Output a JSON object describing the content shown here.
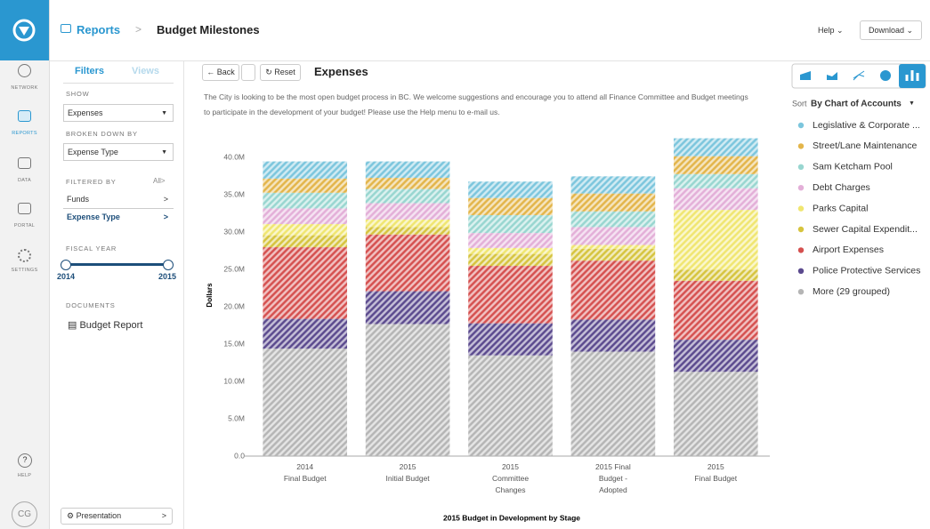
{
  "nav": {
    "items": [
      "NETWORK",
      "REPORTS",
      "DATA",
      "PORTAL",
      "SETTINGS"
    ],
    "help": "HELP",
    "user": "CG"
  },
  "header": {
    "section": "Reports",
    "title": "Budget Milestones",
    "help": "Help",
    "download": "Download"
  },
  "filters": {
    "tabs": [
      "Filters",
      "Views"
    ],
    "show_label": "SHOW",
    "show_value": "Expenses",
    "broken_label": "BROKEN DOWN BY",
    "broken_value": "Expense Type",
    "filtered_label": "FILTERED BY",
    "filtered_all": "All",
    "filtered_items": [
      "Funds",
      "Expense Type"
    ],
    "fiscal_label": "FISCAL YEAR",
    "fiscal_start": "2014",
    "fiscal_end": "2015",
    "documents_label": "DOCUMENTS",
    "document": "Budget Report",
    "presentation": "Presentation"
  },
  "toolbar": {
    "back": "Back",
    "reset": "Reset",
    "title": "Expenses",
    "description": "The City is looking to be the most open budget process in BC. We welcome suggestions and encourage you to attend all Finance Committee and Budget meetings to participate in the development of your budget! Please use the Help menu to e-mail us."
  },
  "sort": {
    "label": "Sort",
    "value": "By Chart of Accounts"
  },
  "chart_data": {
    "type": "bar",
    "stacked": true,
    "y_label": "Dollars",
    "x_label": "2015 Budget in Development by Stage",
    "categories": [
      "2014\nFinal Budget",
      "2015\nInitial Budget",
      "2015\nCommittee\nChanges",
      "2015 Final\nBudget -\nAdopted",
      "2015\nFinal Budget"
    ],
    "series": [
      {
        "name": "Legislative & Corporate ...",
        "color": "#7cc6dd",
        "values": [
          2.3,
          2.2,
          2.2,
          2.3,
          2.4
        ]
      },
      {
        "name": "Street/Lane Maintenance",
        "color": "#e3b54a",
        "values": [
          1.9,
          1.5,
          2.3,
          2.4,
          2.4
        ]
      },
      {
        "name": "Sam Ketcham Pool",
        "color": "#98d6d0",
        "values": [
          2.1,
          1.9,
          2.4,
          2.1,
          1.9
        ]
      },
      {
        "name": "Debt Charges",
        "color": "#e3afd8",
        "values": [
          2.1,
          2.2,
          2.0,
          2.4,
          2.9
        ]
      },
      {
        "name": "Parks Capital",
        "color": "#f0e670",
        "values": [
          1.5,
          1.0,
          0.8,
          0.5,
          8.0
        ]
      },
      {
        "name": "Sewer Capital Expendit...",
        "color": "#d6c43e",
        "values": [
          1.6,
          1.0,
          1.6,
          1.6,
          1.5
        ]
      },
      {
        "name": "Airport Expenses",
        "color": "#d5504f",
        "values": [
          9.6,
          7.6,
          7.7,
          7.9,
          7.9
        ]
      },
      {
        "name": "Police Protective Services",
        "color": "#5b4a8e",
        "values": [
          4.0,
          4.4,
          4.3,
          4.3,
          4.3
        ]
      },
      {
        "name": "More (29 grouped)",
        "color": "#b5b5b5",
        "values": [
          14.4,
          17.7,
          13.5,
          14.0,
          11.3
        ]
      }
    ],
    "ylim": [
      0,
      43.5
    ],
    "yticks": [
      {
        "value": 0,
        "label": "0.0"
      },
      {
        "value": 5,
        "label": "5.0M"
      },
      {
        "value": 10,
        "label": "10.0M"
      },
      {
        "value": 15,
        "label": "15.0M"
      },
      {
        "value": 20,
        "label": "20.0M"
      },
      {
        "value": 25,
        "label": "25.0M"
      },
      {
        "value": 30,
        "label": "30.0M"
      },
      {
        "value": 35,
        "label": "35.0M"
      },
      {
        "value": 40,
        "label": "40.0M"
      }
    ]
  }
}
